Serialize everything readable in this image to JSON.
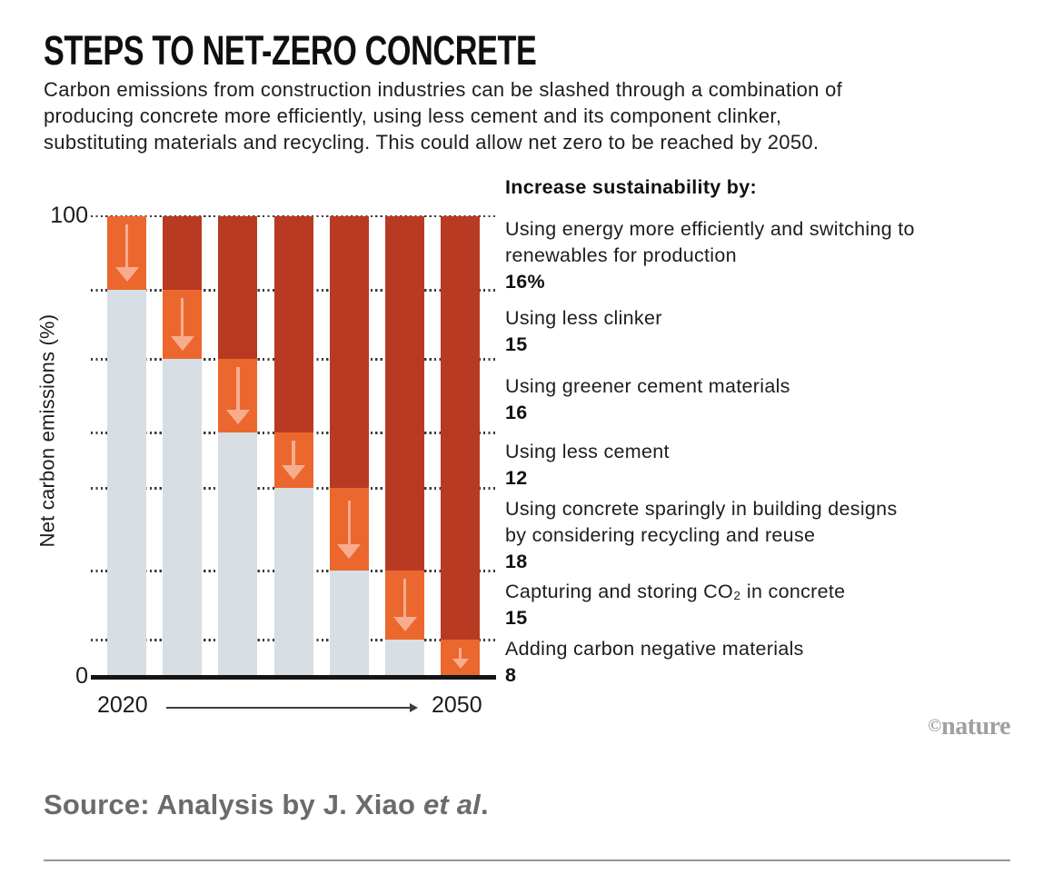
{
  "header": {
    "title": "STEPS TO NET-ZERO CONCRETE",
    "subtitle_lines": [
      "Carbon emissions from construction industries can be slashed through a combination of",
      "producing concrete more efficiently, using less cement and its component clinker,",
      "substituting materials and recycling. This could allow net zero to be reached by 2050."
    ]
  },
  "chart": {
    "y_axis_label": "Net carbon emissions (%)",
    "y_tick_top": "100",
    "y_tick_bottom": "0",
    "x_start_label": "2020",
    "x_end_label": "2050",
    "legend_heading": "Increase sustainability by:"
  },
  "chart_data": {
    "type": "bar",
    "stacked": true,
    "title": "STEPS TO NET-ZERO CONCRETE",
    "ylabel": "Net carbon emissions (%)",
    "ylim": [
      0,
      100
    ],
    "x_range": [
      "2020",
      "2050"
    ],
    "legend_title": "Increase sustainability by:",
    "gridline_levels": [
      100,
      84,
      69,
      53,
      41,
      23,
      8
    ],
    "steps": [
      {
        "label_lines": [
          "Using energy more efficiently and switching to",
          "renewables for production"
        ],
        "value": 16,
        "value_label": "16%",
        "remaining_after": 84
      },
      {
        "label_lines": [
          "Using less clinker"
        ],
        "value": 15,
        "value_label": "15",
        "remaining_after": 69
      },
      {
        "label_lines": [
          "Using greener cement materials"
        ],
        "value": 16,
        "value_label": "16",
        "remaining_after": 53
      },
      {
        "label_lines": [
          "Using less cement"
        ],
        "value": 12,
        "value_label": "12",
        "remaining_after": 41
      },
      {
        "label_lines": [
          "Using concrete sparingly in building designs",
          "by considering recycling and reuse"
        ],
        "value": 18,
        "value_label": "18",
        "remaining_after": 23
      },
      {
        "label_lines": [
          "Capturing and storing CO₂ in concrete"
        ],
        "value": 15,
        "value_label": "15",
        "remaining_after": 8
      },
      {
        "label_lines": [
          "Adding carbon negative materials"
        ],
        "value": 8,
        "value_label": "8",
        "remaining_after": 0
      }
    ],
    "colors": {
      "remaining_emissions": "#D7DEE4",
      "current_reduction": "#EC672E",
      "cumulative_reduction": "#B93A22",
      "reduction_arrow": "#F7AD8D",
      "axis": "#151515"
    }
  },
  "footer": {
    "credit_symbol": "©",
    "credit_name": "nature",
    "source_prefix": "Source: Analysis by J. Xiao ",
    "source_italic": "et al",
    "source_suffix": "."
  }
}
